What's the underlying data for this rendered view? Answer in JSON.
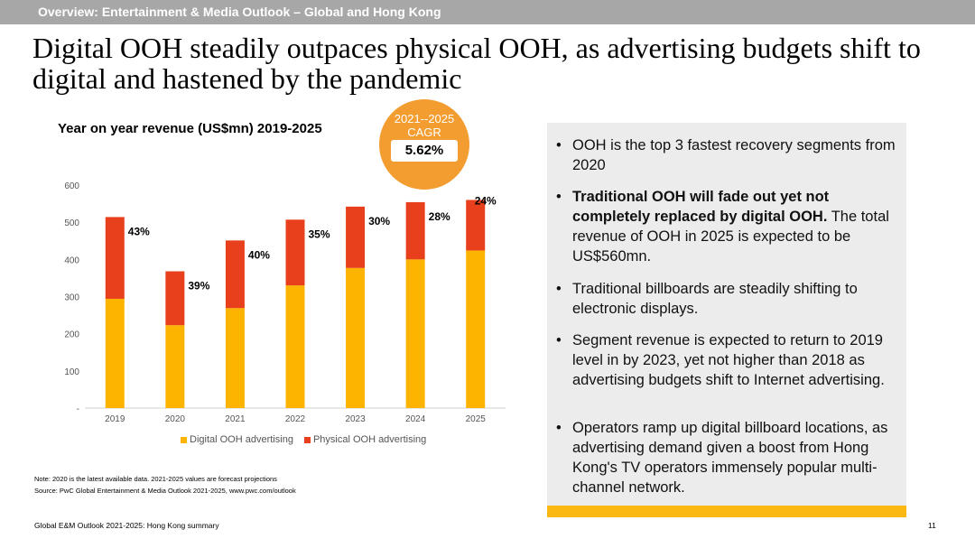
{
  "header": {
    "section": "Overview: Entertainment & Media Outlook – Global and Hong Kong"
  },
  "headline": "Digital OOH steadily outpaces physical OOH, as advertising budgets shift to digital and hastened by the pandemic",
  "badge": {
    "period": "2021--2025",
    "label": "CAGR",
    "value": "5.62%"
  },
  "chart_data": {
    "type": "bar",
    "stacked": true,
    "title": "Year on year revenue (US$mn) 2019-2025",
    "categories": [
      "2019",
      "2020",
      "2021",
      "2022",
      "2023",
      "2024",
      "2025"
    ],
    "series": [
      {
        "name": "Digital OOH advertising",
        "color": "#fdb400",
        "values": [
          294,
          223,
          269,
          330,
          377,
          400,
          424
        ]
      },
      {
        "name": "Physical OOH advertising",
        "color": "#e8401c",
        "values": [
          220,
          145,
          182,
          177,
          165,
          154,
          136
        ]
      }
    ],
    "data_labels": [
      "43%",
      "39%",
      "40%",
      "35%",
      "30%",
      "28%",
      "24%"
    ],
    "yticks": [
      "-",
      "100",
      "200",
      "300",
      "400",
      "500",
      "600"
    ],
    "ylim": [
      0,
      600
    ],
    "grid": false,
    "legend": "bottom"
  },
  "notes": {
    "note": "Note: 2020 is the latest available data. 2021-2025 values are forecast projections",
    "source": "Source: PwC Global Entertainment & Media Outlook 2021-2025, www.pwc.com/outlook"
  },
  "panel": {
    "bullet_glyph": "•",
    "bullets": [
      {
        "bold": "",
        "text": "OOH is the top 3 fastest recovery segments from 2020"
      },
      {
        "bold": "Traditional OOH will fade out yet not completely replaced by digital OOH.",
        "text": " The total revenue of OOH in 2025 is expected to be US$560mn."
      },
      {
        "bold": "",
        "text": "Traditional billboards are steadily shifting to electronic displays."
      },
      {
        "bold": "",
        "text": "Segment revenue is expected to return to 2019 level in by 2023, yet not higher than 2018 as advertising budgets shift to Internet advertising."
      },
      {
        "bold": "",
        "text": "Operators ramp up digital billboard locations, as advertising demand given a boost from Hong Kong's TV operators immensely popular multi-channel network."
      }
    ]
  },
  "footer": {
    "left": "Global E&M Outlook 2021-2025: Hong Kong summary",
    "page": "11"
  }
}
